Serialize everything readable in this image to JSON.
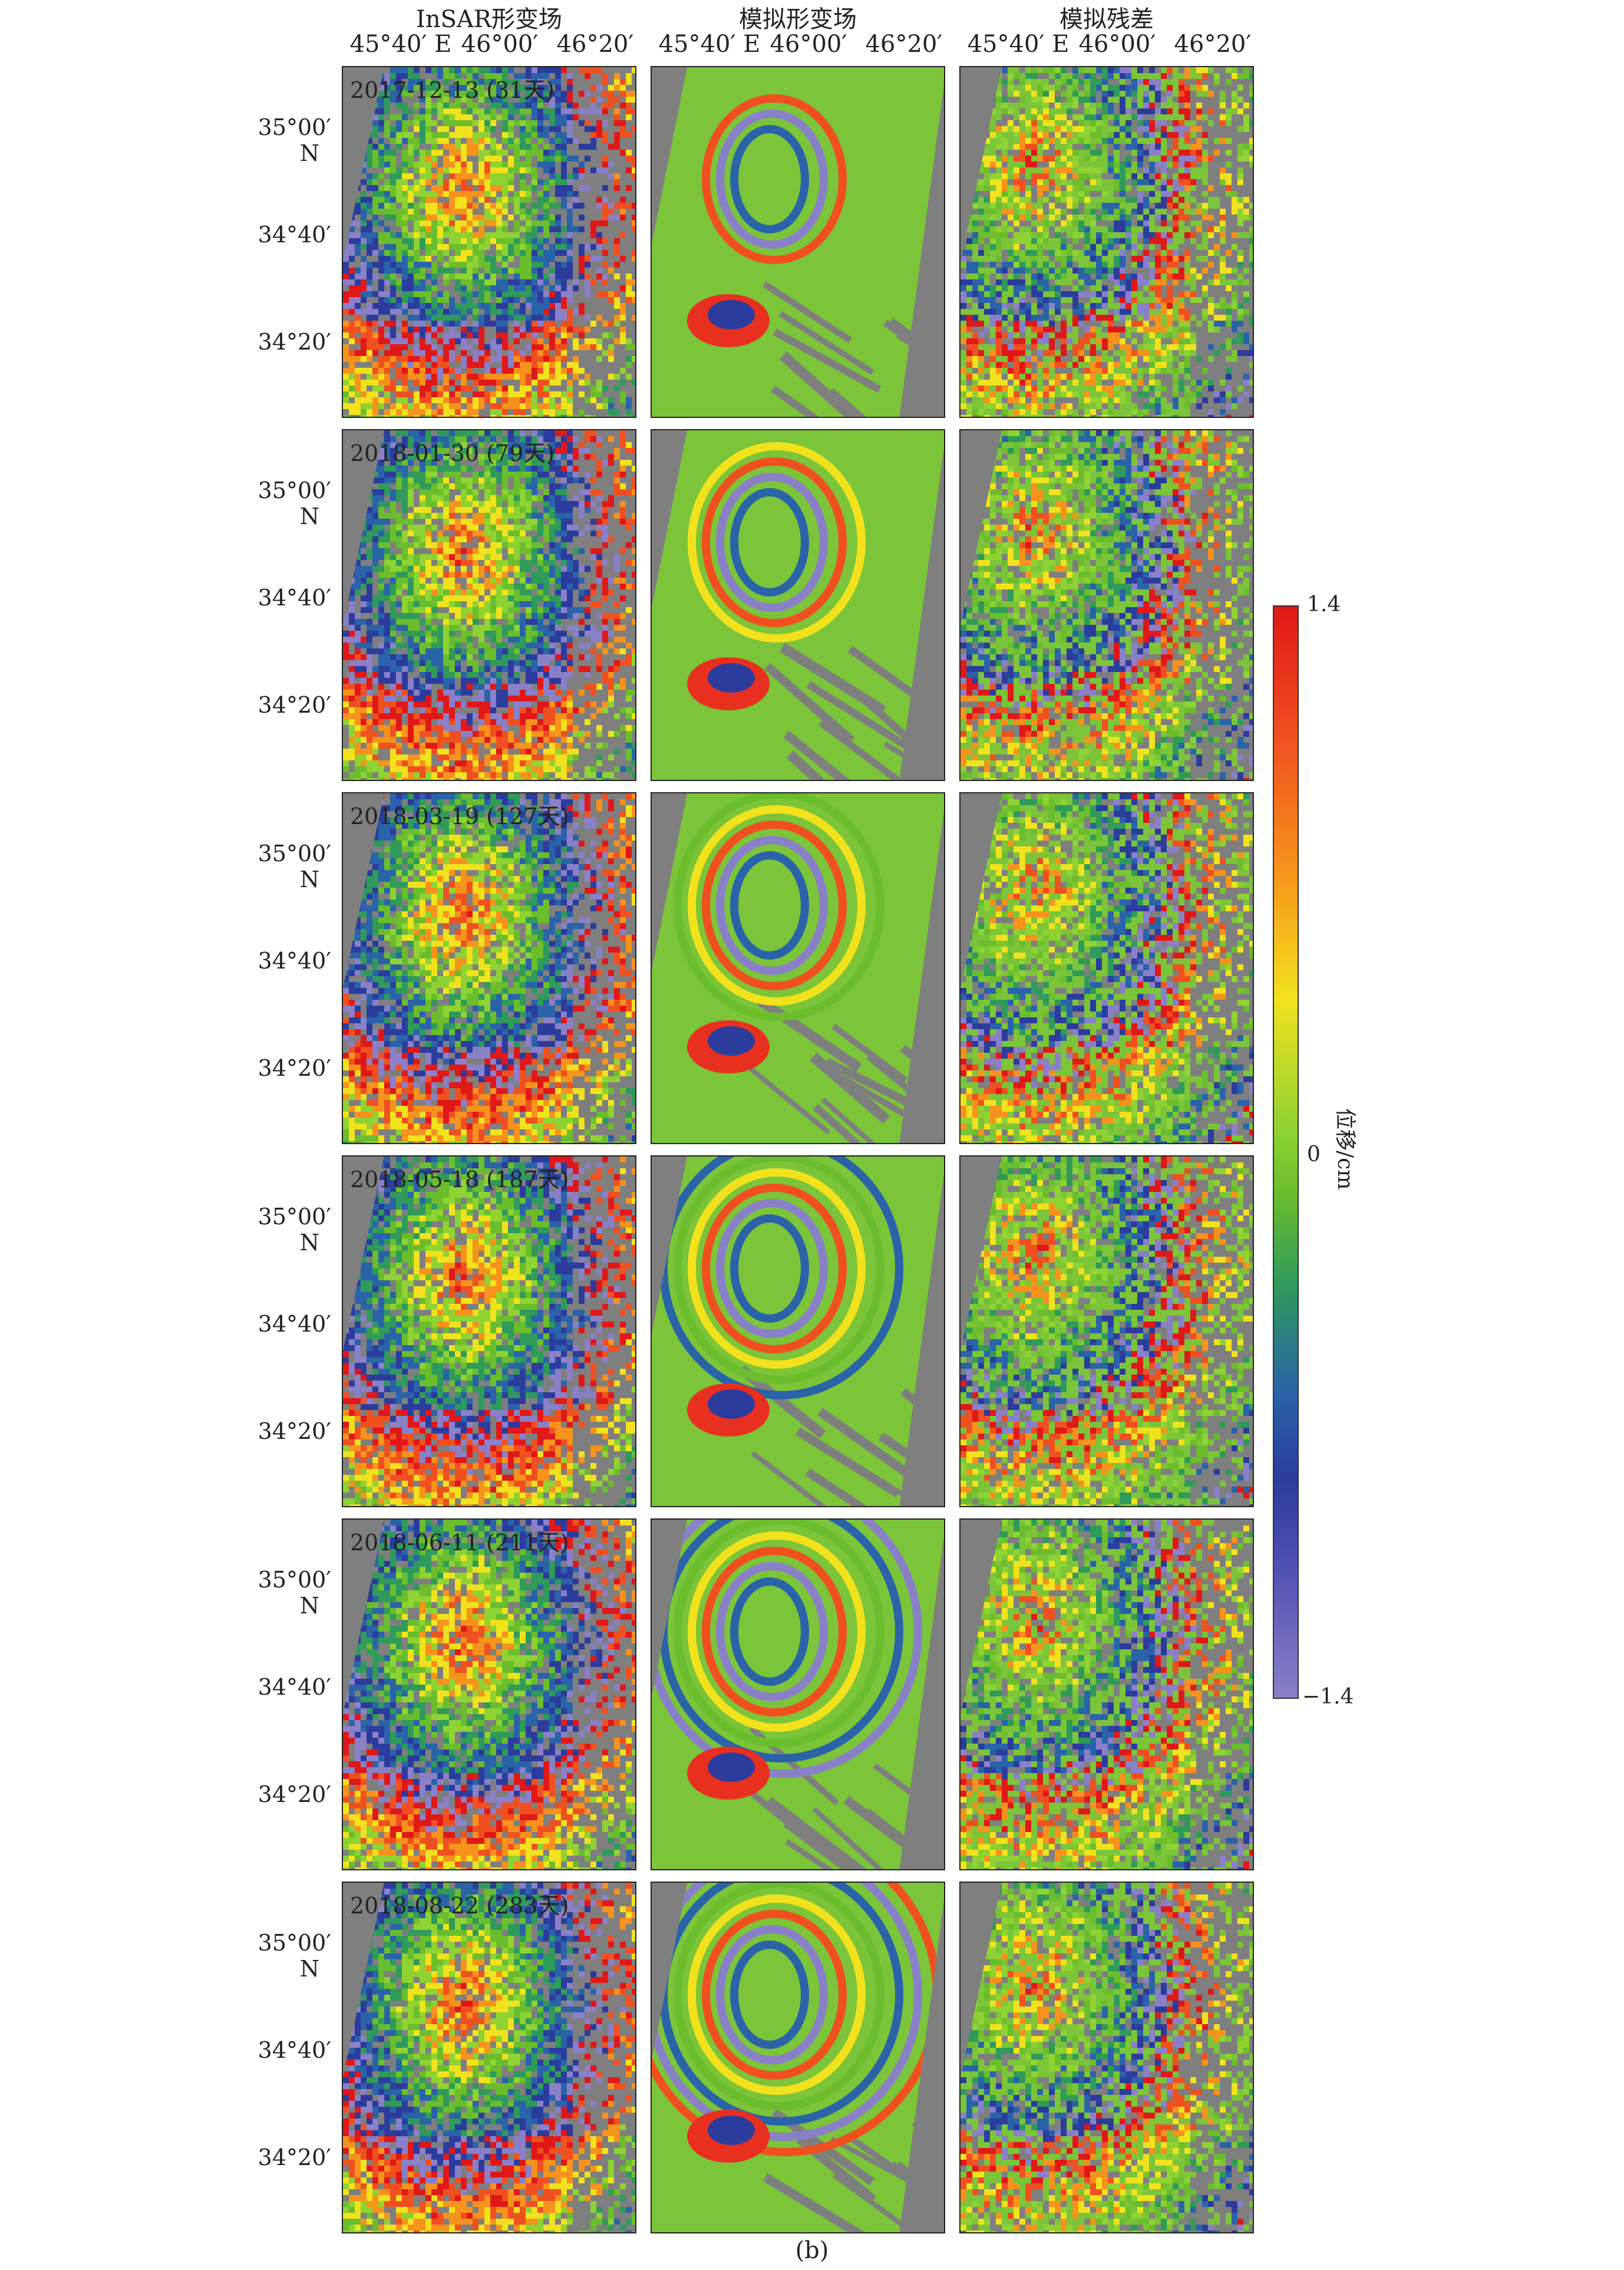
{
  "columns": [
    {
      "title": "InSAR形变场"
    },
    {
      "title": "模拟形变场"
    },
    {
      "title": "模拟残差"
    }
  ],
  "lon_ticks": [
    "45°40′ E",
    "46°00′",
    "46°20′"
  ],
  "lat_ticks": [
    {
      "label": "35°00′",
      "sub": "N"
    },
    {
      "label": "34°40′",
      "sub": ""
    },
    {
      "label": "34°20′",
      "sub": ""
    }
  ],
  "rows": [
    {
      "date": "2017-12-13 (31天)"
    },
    {
      "date": "2018-01-30 (79天)"
    },
    {
      "date": "2018-03-19 (127天)"
    },
    {
      "date": "2018-05-18 (187天)"
    },
    {
      "date": "2018-06-11 (211天)"
    },
    {
      "date": "2018-08-22 (283天)"
    }
  ],
  "colorbar": {
    "max_label": "1.4",
    "mid_label": "0",
    "min_label": "−1.4",
    "axis_label": "位移/cm",
    "range": [
      -1.4,
      1.4
    ],
    "colors": [
      "#e01818",
      "#f05020",
      "#f7921c",
      "#f2e21e",
      "#8fd233",
      "#2f9a5a",
      "#2a63a8",
      "#2c3c9c",
      "#8a80c8"
    ]
  },
  "caption": "(b)"
}
